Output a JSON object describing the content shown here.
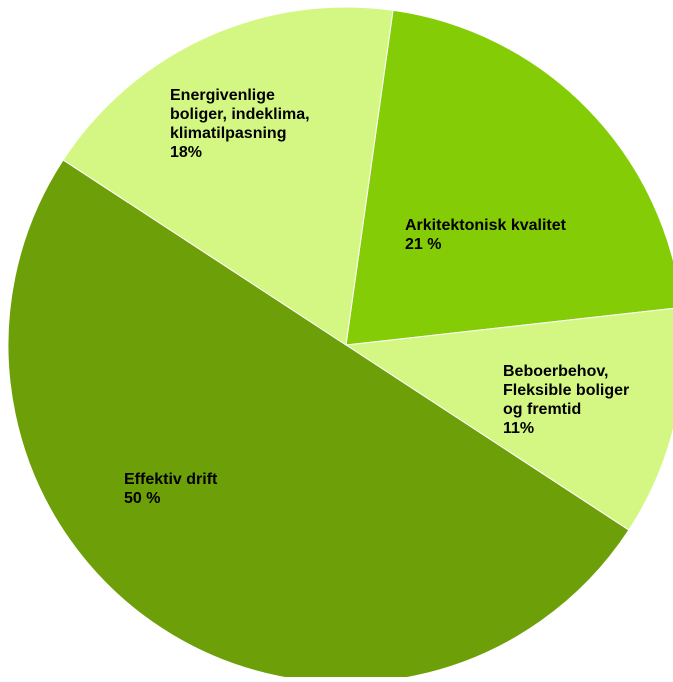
{
  "chart_data": {
    "type": "pie",
    "title": "",
    "start_angle_deg": -82,
    "direction": "clockwise",
    "slices": [
      {
        "label_lines": [
          "Arkitektonisk kvalitet",
          "21 %"
        ],
        "value": 21,
        "color": "#84cc05"
      },
      {
        "label_lines": [
          "Beboerbehov,",
          "Fleksible boliger",
          "og fremtid",
          "11%"
        ],
        "value": 11,
        "color": "#d4f784"
      },
      {
        "label_lines": [
          "Effektiv drift",
          "50 %"
        ],
        "value": 50,
        "color": "#6d9f08"
      },
      {
        "label_lines": [
          "Energivenlige",
          "boliger, indeklima,",
          "klimatilpasning",
          "18%"
        ],
        "value": 18,
        "color": "#d4f784"
      }
    ]
  }
}
